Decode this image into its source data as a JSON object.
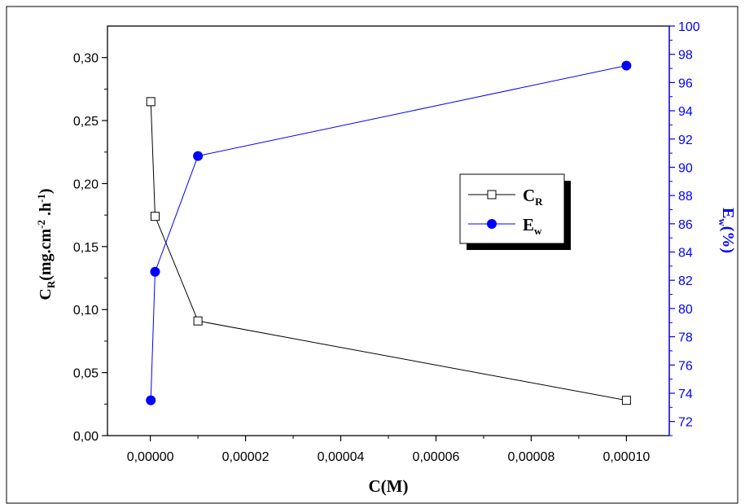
{
  "chart_data": {
    "type": "line",
    "xlabel": "C(M)",
    "ylabel_left": {
      "main": "C",
      "sub": "R",
      "rest": "(mg.cm",
      "sup1": "-2",
      "mid": " .h",
      "sup2": "-1",
      "end": ")"
    },
    "ylabel_right": {
      "main": "E",
      "sub": "w",
      "rest": "(%)"
    },
    "x_axis": {
      "range": [
        -9e-06,
        0.000109
      ],
      "ticks": [
        0,
        2e-05,
        4e-05,
        6e-05,
        8e-05,
        0.0001
      ],
      "tick_labels": [
        "0,00000",
        "0,00002",
        "0,00004",
        "0,00006",
        "0,00008",
        "0,00010"
      ]
    },
    "y_left_axis": {
      "range": [
        0,
        0.325
      ],
      "ticks": [
        0,
        0.05,
        0.1,
        0.15,
        0.2,
        0.25,
        0.3
      ],
      "tick_labels": [
        "0,00",
        "0,05",
        "0,10",
        "0,15",
        "0,20",
        "0,25",
        "0,30"
      ]
    },
    "y_right_axis": {
      "range": [
        71,
        100
      ],
      "ticks": [
        72,
        74,
        76,
        78,
        80,
        82,
        84,
        86,
        88,
        90,
        92,
        94,
        96,
        98,
        100
      ],
      "tick_labels": [
        "72",
        "74",
        "76",
        "78",
        "80",
        "82",
        "84",
        "86",
        "88",
        "90",
        "92",
        "94",
        "96",
        "98",
        "100"
      ]
    },
    "series": [
      {
        "name": "CR",
        "legend_main": "C",
        "legend_sub": "R",
        "axis": "left",
        "marker": "open-square",
        "color": "#000000",
        "x": [
          1e-07,
          1e-06,
          1e-05,
          0.0001
        ],
        "y": [
          0.265,
          0.174,
          0.091,
          0.028
        ]
      },
      {
        "name": "Ew",
        "legend_main": "E",
        "legend_sub": "w",
        "axis": "right",
        "marker": "filled-circle",
        "color": "#0000ff",
        "x": [
          1e-07,
          1e-06,
          1e-05,
          0.0001
        ],
        "y": [
          73.5,
          82.6,
          90.8,
          97.2
        ]
      }
    ],
    "legend_position": "center-right",
    "grid": false
  }
}
